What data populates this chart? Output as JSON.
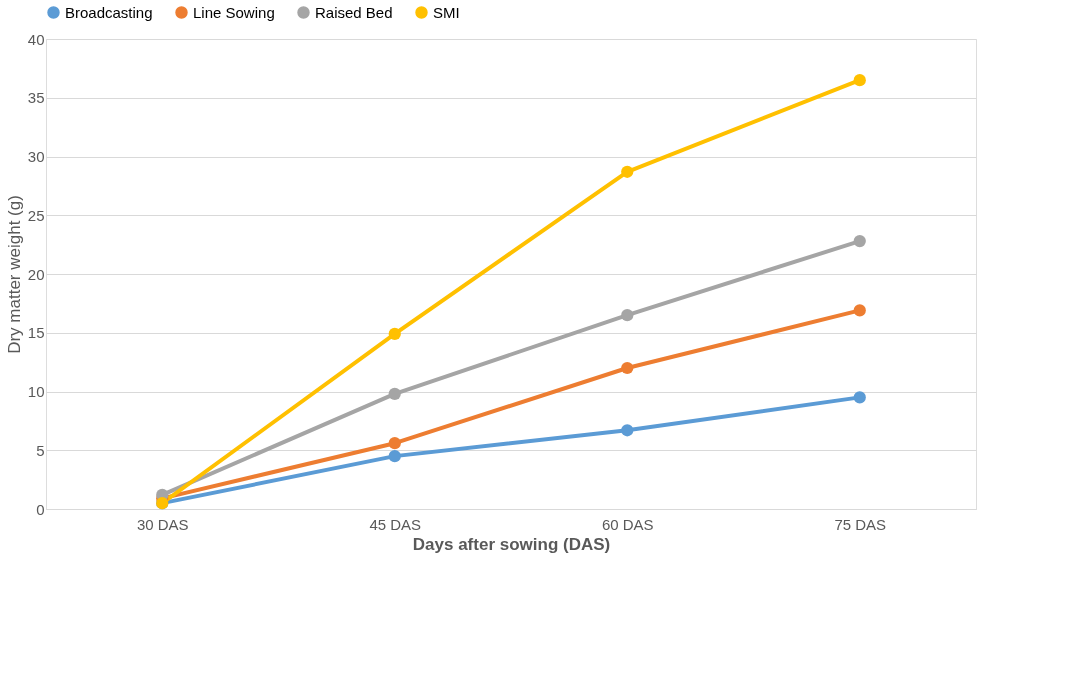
{
  "chart_data": {
    "type": "line",
    "xlabel": "Days after sowing (DAS)",
    "ylabel": "Dry matter weight (g)",
    "categories": [
      "30 DAS",
      "45 DAS",
      "60 DAS",
      "75 DAS"
    ],
    "series": [
      {
        "name": "Broadcasting",
        "color": "#5b9bd5",
        "values": [
          0.5,
          4.5,
          6.7,
          9.5
        ]
      },
      {
        "name": "Line Sowing",
        "color": "#ed7d31",
        "values": [
          0.9,
          5.6,
          12.0,
          16.9
        ]
      },
      {
        "name": "Raised Bed",
        "color": "#a5a5a5",
        "values": [
          1.2,
          9.8,
          16.5,
          22.8
        ]
      },
      {
        "name": "SMI",
        "color": "#ffc000",
        "values": [
          0.5,
          14.9,
          28.7,
          36.5
        ]
      }
    ],
    "ylim": [
      0,
      40
    ],
    "yticks": [
      0,
      5,
      10,
      15,
      20,
      25,
      30,
      35,
      40
    ],
    "grid": "y",
    "legend": "top",
    "marker": "circle",
    "line_style": "solid"
  }
}
